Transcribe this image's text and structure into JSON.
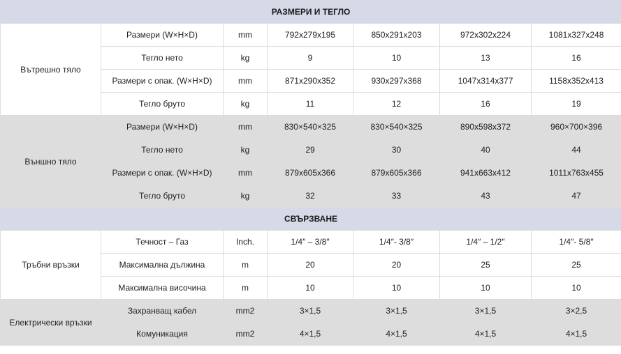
{
  "sections": [
    {
      "title": "РАЗМЕРИ И ТЕГЛО",
      "groups": [
        {
          "label": "Вътрешно тяло",
          "shade": "white",
          "rows": [
            {
              "param": "Размери (W×H×D)",
              "unit": "mm",
              "values": [
                "792x279x195",
                "850x291x203",
                "972x302x224",
                "1081x327x248"
              ]
            },
            {
              "param": "Тегло нето",
              "unit": "kg",
              "values": [
                "9",
                "10",
                "13",
                "16"
              ]
            },
            {
              "param": "Размери с опак. (W×H×D)",
              "unit": "mm",
              "values": [
                "871x290x352",
                "930x297x368",
                "1047x314x377",
                "1158x352x413"
              ]
            },
            {
              "param": "Тегло бруто",
              "unit": "kg",
              "values": [
                "11",
                "12",
                "16",
                "19"
              ]
            }
          ]
        },
        {
          "label": "Външно тяло",
          "shade": "grey",
          "rows": [
            {
              "param": "Размери (W×H×D)",
              "unit": "mm",
              "values": [
                "830×540×325",
                "830×540×325",
                "890x598x372",
                "960×700×396"
              ]
            },
            {
              "param": "Тегло нето",
              "unit": "kg",
              "values": [
                "29",
                "30",
                "40",
                "44"
              ]
            },
            {
              "param": "Размери с опак. (W×H×D)",
              "unit": "mm",
              "values": [
                "879x605x366",
                "879x605x366",
                "941x663x412",
                "1011x763x455"
              ]
            },
            {
              "param": "Тегло бруто",
              "unit": "kg",
              "values": [
                "32",
                "33",
                "43",
                "47"
              ]
            }
          ]
        }
      ]
    },
    {
      "title": "СВЪРЗВАНЕ",
      "groups": [
        {
          "label": "Тръбни връзки",
          "shade": "white",
          "rows": [
            {
              "param": "Течност – Газ",
              "unit": "Inch.",
              "values": [
                "1/4″ – 3/8″",
                "1/4″- 3/8″",
                "1/4″ – 1/2″",
                "1/4″- 5/8″"
              ]
            },
            {
              "param": "Максимална дължина",
              "unit": "m",
              "values": [
                "20",
                "20",
                "25",
                "25"
              ]
            },
            {
              "param": "Максимална височина",
              "unit": "m",
              "values": [
                "10",
                "10",
                "10",
                "10"
              ]
            }
          ]
        },
        {
          "label": "Електрически връзки",
          "shade": "grey",
          "rows": [
            {
              "param": "Захранващ кабел",
              "unit": "mm2",
              "values": [
                "3×1,5",
                "3×1,5",
                "3×1,5",
                "3×2,5"
              ]
            },
            {
              "param": "Комуникация",
              "unit": "mm2",
              "values": [
                "4×1,5",
                "4×1,5",
                "4×1,5",
                "4×1,5"
              ]
            }
          ]
        }
      ]
    }
  ],
  "colors": {
    "section_header_bg": "#d6d9e8",
    "group_white_bg": "#ffffff",
    "group_grey_bg": "#dddddd",
    "border": "#dcdcdc"
  }
}
